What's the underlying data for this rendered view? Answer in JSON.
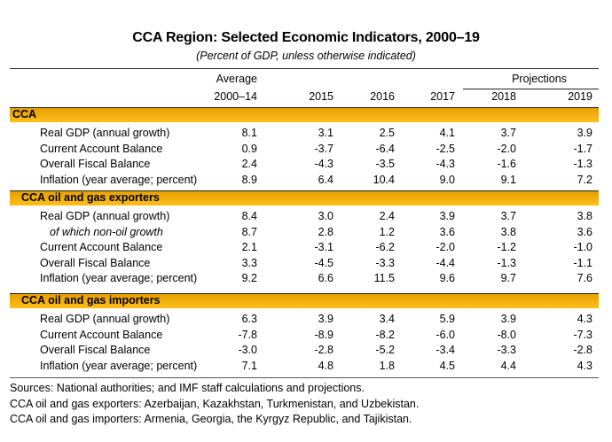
{
  "title": "CCA Region: Selected Economic Indicators, 2000–19",
  "subtitle": "(Percent of GDP, unless otherwise indicated)",
  "header": {
    "average_label": "Average",
    "projections_label": "Projections",
    "columns": [
      "2000–14",
      "2015",
      "2016",
      "2017",
      "2018",
      "2019"
    ]
  },
  "sections": [
    {
      "name": "CCA",
      "rows": [
        {
          "label": "Real GDP (annual growth)",
          "values": [
            "8.1",
            "3.1",
            "2.5",
            "4.1",
            "3.7",
            "3.9"
          ]
        },
        {
          "label": "Current Account Balance",
          "values": [
            "0.9",
            "-3.7",
            "-6.4",
            "-2.5",
            "-2.0",
            "-1.7"
          ]
        },
        {
          "label": "Overall Fiscal Balance",
          "values": [
            "2.4",
            "-4.3",
            "-3.5",
            "-4.3",
            "-1.6",
            "-1.3"
          ]
        },
        {
          "label": "Inflation (year average; percent)",
          "values": [
            "8.9",
            "6.4",
            "10.4",
            "9.0",
            "9.1",
            "7.2"
          ]
        }
      ]
    },
    {
      "name": "CCA oil and gas exporters",
      "rows": [
        {
          "label": "Real GDP (annual growth)",
          "values": [
            "8.4",
            "3.0",
            "2.4",
            "3.9",
            "3.7",
            "3.8"
          ]
        },
        {
          "label": "of which non-oil growth",
          "values": [
            "8.7",
            "2.8",
            "1.2",
            "3.6",
            "3.8",
            "3.6"
          ]
        },
        {
          "label": "Current Account Balance",
          "values": [
            "2.1",
            "-3.1",
            "-6.2",
            "-2.0",
            "-1.2",
            "-1.0"
          ]
        },
        {
          "label": "Overall Fiscal Balance",
          "values": [
            "3.3",
            "-4.5",
            "-3.3",
            "-4.4",
            "-1.3",
            "-1.1"
          ]
        },
        {
          "label": "Inflation (year average; percent)",
          "values": [
            "9.2",
            "6.6",
            "11.5",
            "9.6",
            "9.7",
            "7.6"
          ]
        }
      ]
    },
    {
      "name": "CCA oil and gas importers",
      "rows": [
        {
          "label": "Real GDP (annual growth)",
          "values": [
            "6.3",
            "3.9",
            "3.4",
            "5.9",
            "3.9",
            "4.3"
          ]
        },
        {
          "label": "Current Account Balance",
          "values": [
            "-7.8",
            "-8.9",
            "-8.2",
            "-6.0",
            "-8.0",
            "-7.3"
          ]
        },
        {
          "label": "Overall Fiscal Balance",
          "values": [
            "-3.0",
            "-2.8",
            "-5.2",
            "-3.4",
            "-3.3",
            "-2.8"
          ]
        },
        {
          "label": "Inflation (year average; percent)",
          "values": [
            "7.1",
            "4.8",
            "1.8",
            "4.5",
            "4.4",
            "4.3"
          ]
        }
      ]
    }
  ],
  "notes": [
    "Sources: National authorities; and IMF staff calculations and projections.",
    "CCA oil and gas exporters: Azerbaijan, Kazakhstan, Turkmenistan, and Uzbekistan.",
    "CCA oil and gas importers: Armenia, Georgia, the Kyrgyz Republic, and Tajikistan."
  ],
  "colors": {
    "band_top": "#e6a000",
    "band_bottom": "#ffbe1a"
  }
}
